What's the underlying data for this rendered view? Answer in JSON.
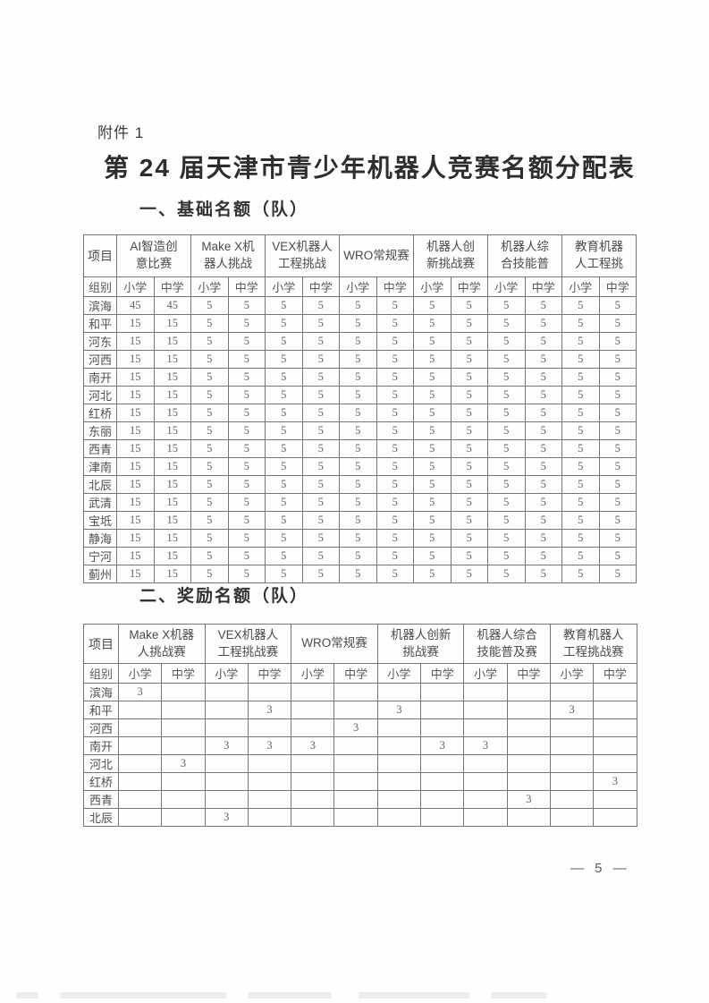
{
  "colors": {
    "ink": "#3b3b3b",
    "table-text": "#5c5c5c",
    "border": "#767676"
  },
  "page": {
    "attachment_label": "附件 1",
    "main_title": "第 24 届天津市青少年机器人竞赛名额分配表",
    "page_number": "— 5 —"
  },
  "table1": {
    "section_title": "一、基础名额（队）",
    "corner_label": "项目",
    "group_label": "组别",
    "subgroup_labels": [
      "小学",
      "中学"
    ],
    "competitions": [
      {
        "line1": "AI智造创",
        "line2": "意比赛"
      },
      {
        "line1": "Make X机",
        "line2": "器人挑战"
      },
      {
        "line1": "VEX机器人",
        "line2": "工程挑战"
      },
      {
        "line1": "WRO常规赛",
        "line2": ""
      },
      {
        "line1": "机器人创",
        "line2": "新挑战赛"
      },
      {
        "line1": "机器人综",
        "line2": "合技能普"
      },
      {
        "line1": "教育机器",
        "line2": "人工程挑"
      }
    ],
    "rows": [
      {
        "district": "滨海",
        "values": [
          "45",
          "45",
          "5",
          "5",
          "5",
          "5",
          "5",
          "5",
          "5",
          "5",
          "5",
          "5",
          "5",
          "5"
        ]
      },
      {
        "district": "和平",
        "values": [
          "15",
          "15",
          "5",
          "5",
          "5",
          "5",
          "5",
          "5",
          "5",
          "5",
          "5",
          "5",
          "5",
          "5"
        ]
      },
      {
        "district": "河东",
        "values": [
          "15",
          "15",
          "5",
          "5",
          "5",
          "5",
          "5",
          "5",
          "5",
          "5",
          "5",
          "5",
          "5",
          "5"
        ]
      },
      {
        "district": "河西",
        "values": [
          "15",
          "15",
          "5",
          "5",
          "5",
          "5",
          "5",
          "5",
          "5",
          "5",
          "5",
          "5",
          "5",
          "5"
        ]
      },
      {
        "district": "南开",
        "values": [
          "15",
          "15",
          "5",
          "5",
          "5",
          "5",
          "5",
          "5",
          "5",
          "5",
          "5",
          "5",
          "5",
          "5"
        ]
      },
      {
        "district": "河北",
        "values": [
          "15",
          "15",
          "5",
          "5",
          "5",
          "5",
          "5",
          "5",
          "5",
          "5",
          "5",
          "5",
          "5",
          "5"
        ]
      },
      {
        "district": "红桥",
        "values": [
          "15",
          "15",
          "5",
          "5",
          "5",
          "5",
          "5",
          "5",
          "5",
          "5",
          "5",
          "5",
          "5",
          "5"
        ]
      },
      {
        "district": "东丽",
        "values": [
          "15",
          "15",
          "5",
          "5",
          "5",
          "5",
          "5",
          "5",
          "5",
          "5",
          "5",
          "5",
          "5",
          "5"
        ]
      },
      {
        "district": "西青",
        "values": [
          "15",
          "15",
          "5",
          "5",
          "5",
          "5",
          "5",
          "5",
          "5",
          "5",
          "5",
          "5",
          "5",
          "5"
        ]
      },
      {
        "district": "津南",
        "values": [
          "15",
          "15",
          "5",
          "5",
          "5",
          "5",
          "5",
          "5",
          "5",
          "5",
          "5",
          "5",
          "5",
          "5"
        ]
      },
      {
        "district": "北辰",
        "values": [
          "15",
          "15",
          "5",
          "5",
          "5",
          "5",
          "5",
          "5",
          "5",
          "5",
          "5",
          "5",
          "5",
          "5"
        ]
      },
      {
        "district": "武清",
        "values": [
          "15",
          "15",
          "5",
          "5",
          "5",
          "5",
          "5",
          "5",
          "5",
          "5",
          "5",
          "5",
          "5",
          "5"
        ]
      },
      {
        "district": "宝坻",
        "values": [
          "15",
          "15",
          "5",
          "5",
          "5",
          "5",
          "5",
          "5",
          "5",
          "5",
          "5",
          "5",
          "5",
          "5"
        ]
      },
      {
        "district": "静海",
        "values": [
          "15",
          "15",
          "5",
          "5",
          "5",
          "5",
          "5",
          "5",
          "5",
          "5",
          "5",
          "5",
          "5",
          "5"
        ]
      },
      {
        "district": "宁河",
        "values": [
          "15",
          "15",
          "5",
          "5",
          "5",
          "5",
          "5",
          "5",
          "5",
          "5",
          "5",
          "5",
          "5",
          "5"
        ]
      },
      {
        "district": "蓟州",
        "values": [
          "15",
          "15",
          "5",
          "5",
          "5",
          "5",
          "5",
          "5",
          "5",
          "5",
          "5",
          "5",
          "5",
          "5"
        ]
      }
    ]
  },
  "table2": {
    "section_title": "二、奖励名额（队）",
    "corner_label": "项目",
    "group_label": "组别",
    "subgroup_labels": [
      "小学",
      "中学"
    ],
    "competitions": [
      {
        "line1": "Make X机器",
        "line2": "人挑战赛"
      },
      {
        "line1": "VEX机器人",
        "line2": "工程挑战赛"
      },
      {
        "line1": "WRO常规赛",
        "line2": ""
      },
      {
        "line1": "机器人创新",
        "line2": "挑战赛"
      },
      {
        "line1": "机器人综合",
        "line2": "技能普及赛"
      },
      {
        "line1": "教育机器人",
        "line2": "工程挑战赛"
      }
    ],
    "rows": [
      {
        "district": "滨海",
        "values": [
          "3",
          "",
          "",
          "",
          "",
          "",
          "",
          "",
          "",
          "",
          "",
          ""
        ]
      },
      {
        "district": "和平",
        "values": [
          "",
          "",
          "",
          "3",
          "",
          "",
          "3",
          "",
          "",
          "",
          "3",
          ""
        ]
      },
      {
        "district": "河西",
        "values": [
          "",
          "",
          "",
          "",
          "",
          "3",
          "",
          "",
          "",
          "",
          "",
          ""
        ]
      },
      {
        "district": "南开",
        "values": [
          "",
          "",
          "3",
          "3",
          "3",
          "",
          "",
          "3",
          "3",
          "",
          "",
          ""
        ]
      },
      {
        "district": "河北",
        "values": [
          "",
          "3",
          "",
          "",
          "",
          "",
          "",
          "",
          "",
          "",
          "",
          ""
        ]
      },
      {
        "district": "红桥",
        "values": [
          "",
          "",
          "",
          "",
          "",
          "",
          "",
          "",
          "",
          "",
          "",
          "3"
        ]
      },
      {
        "district": "西青",
        "values": [
          "",
          "",
          "",
          "",
          "",
          "",
          "",
          "",
          "",
          "3",
          "",
          ""
        ]
      },
      {
        "district": "北辰",
        "values": [
          "",
          "",
          "3",
          "",
          "",
          "",
          "",
          "",
          "",
          "",
          "",
          ""
        ]
      }
    ]
  }
}
